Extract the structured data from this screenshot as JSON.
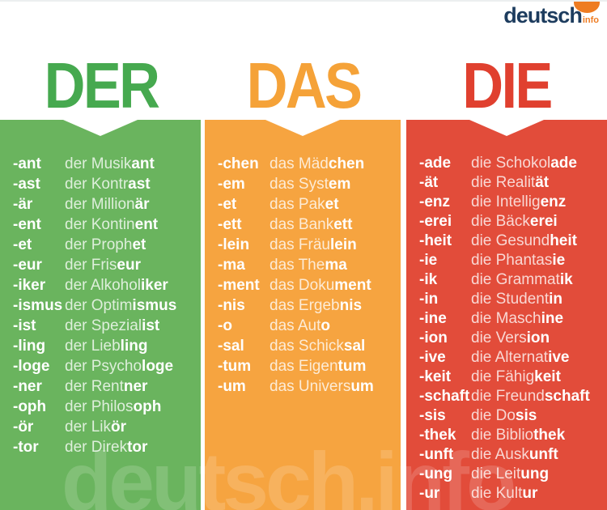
{
  "logo": {
    "text": "deutsch",
    "suffix": "info"
  },
  "watermark": "deutsch.info",
  "colors": {
    "logo_navy": "#1d3c5e",
    "logo_orange": "#ee7c22",
    "green": "#6ab45e",
    "orange": "#f6a440",
    "red": "#e24c3a"
  },
  "columns": [
    {
      "title": "DER",
      "title_color": "#46a94f",
      "color": "#6ab45e",
      "rows": [
        {
          "suffix": "-ant",
          "base": "der Musik",
          "ending": "ant"
        },
        {
          "suffix": "-ast",
          "base": "der Kontr",
          "ending": "ast"
        },
        {
          "suffix": "-är",
          "base": "der Million",
          "ending": "är"
        },
        {
          "suffix": "-ent",
          "base": "der Kontin",
          "ending": "ent"
        },
        {
          "suffix": "-et",
          "base": "der Proph",
          "ending": "et"
        },
        {
          "suffix": "-eur",
          "base": "der Fris",
          "ending": "eur"
        },
        {
          "suffix": "-iker",
          "base": "der Alkohol",
          "ending": "iker"
        },
        {
          "suffix": "-ismus",
          "base": "der Optim",
          "ending": "ismus"
        },
        {
          "suffix": "-ist",
          "base": "der Spezial",
          "ending": "ist"
        },
        {
          "suffix": "-ling",
          "base": "der Lieb",
          "ending": "ling"
        },
        {
          "suffix": "-loge",
          "base": "der Psycho",
          "ending": "loge"
        },
        {
          "suffix": "-ner",
          "base": "der Rent",
          "ending": "ner"
        },
        {
          "suffix": "-oph",
          "base": "der Philos",
          "ending": "oph"
        },
        {
          "suffix": "-ör",
          "base": "der Lik",
          "ending": "ör"
        },
        {
          "suffix": "-tor",
          "base": "der Direk",
          "ending": "tor"
        }
      ]
    },
    {
      "title": "DAS",
      "title_color": "#f5a238",
      "color": "#f6a440",
      "rows": [
        {
          "suffix": "-chen",
          "base": "das Mäd",
          "ending": "chen"
        },
        {
          "suffix": "-em",
          "base": "das Syst",
          "ending": "em"
        },
        {
          "suffix": "-et",
          "base": "das Pak",
          "ending": "et"
        },
        {
          "suffix": "-ett",
          "base": "das Bank",
          "ending": "ett"
        },
        {
          "suffix": "-lein",
          "base": "das Fräu",
          "ending": "lein"
        },
        {
          "suffix": "-ma",
          "base": "das The",
          "ending": "ma"
        },
        {
          "suffix": "-ment",
          "base": "das Doku",
          "ending": "ment"
        },
        {
          "suffix": "-nis",
          "base": "das Ergeb",
          "ending": "nis"
        },
        {
          "suffix": "-o",
          "base": "das Aut",
          "ending": "o"
        },
        {
          "suffix": "-sal",
          "base": "das Schick",
          "ending": "sal"
        },
        {
          "suffix": "-tum",
          "base": "das Eigen",
          "ending": "tum"
        },
        {
          "suffix": "-um",
          "base": "das Univers",
          "ending": "um"
        }
      ]
    },
    {
      "title": "DIE",
      "title_color": "#e0402f",
      "color": "#e24c3a",
      "rows": [
        {
          "suffix": "-ade",
          "base": "die Schokol",
          "ending": "ade"
        },
        {
          "suffix": "-ät",
          "base": "die Realit",
          "ending": "ät"
        },
        {
          "suffix": "-enz",
          "base": "die Intellig",
          "ending": "enz"
        },
        {
          "suffix": "-erei",
          "base": "die Bäck",
          "ending": "erei"
        },
        {
          "suffix": "-heit",
          "base": "die Gesund",
          "ending": "heit"
        },
        {
          "suffix": "-ie",
          "base": "die Phantas",
          "ending": "ie"
        },
        {
          "suffix": "-ik",
          "base": "die Grammat",
          "ending": "ik"
        },
        {
          "suffix": "-in",
          "base": "die Student",
          "ending": "in"
        },
        {
          "suffix": "-ine",
          "base": "die Masch",
          "ending": "ine"
        },
        {
          "suffix": "-ion",
          "base": "die Vers",
          "ending": "ion"
        },
        {
          "suffix": "-ive",
          "base": "die Alternat",
          "ending": "ive"
        },
        {
          "suffix": "-keit",
          "base": "die Fähig",
          "ending": "keit"
        },
        {
          "suffix": "-schaft",
          "base": "die Freund",
          "ending": "schaft"
        },
        {
          "suffix": "-sis",
          "base": "die Do",
          "ending": "sis"
        },
        {
          "suffix": "-thek",
          "base": "die Biblio",
          "ending": "thek"
        },
        {
          "suffix": "-unft",
          "base": "die Ausk",
          "ending": "unft"
        },
        {
          "suffix": "-ung",
          "base": "die Leit",
          "ending": "ung"
        },
        {
          "suffix": "-ur",
          "base": "die Kult",
          "ending": "ur"
        }
      ]
    }
  ]
}
